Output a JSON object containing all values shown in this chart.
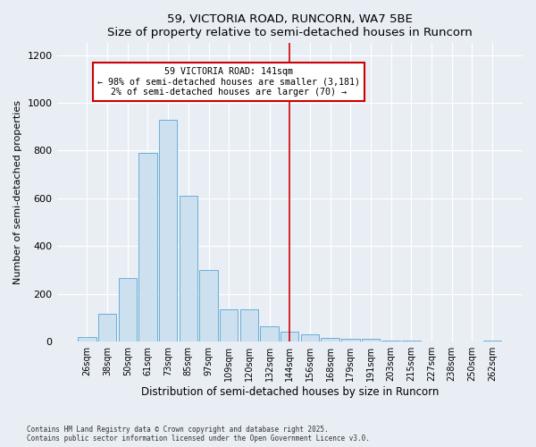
{
  "title1": "59, VICTORIA ROAD, RUNCORN, WA7 5BE",
  "title2": "Size of property relative to semi-detached houses in Runcorn",
  "xlabel": "Distribution of semi-detached houses by size in Runcorn",
  "ylabel": "Number of semi-detached properties",
  "categories": [
    "26sqm",
    "38sqm",
    "50sqm",
    "61sqm",
    "73sqm",
    "85sqm",
    "97sqm",
    "109sqm",
    "120sqm",
    "132sqm",
    "144sqm",
    "156sqm",
    "168sqm",
    "179sqm",
    "191sqm",
    "203sqm",
    "215sqm",
    "227sqm",
    "238sqm",
    "250sqm",
    "262sqm"
  ],
  "values": [
    20,
    115,
    265,
    790,
    930,
    610,
    300,
    135,
    135,
    65,
    40,
    30,
    15,
    10,
    10,
    5,
    5,
    0,
    0,
    0,
    5
  ],
  "bar_color": "#cce0f0",
  "bar_edge_color": "#6aaed6",
  "vline_x_index": 10,
  "annotation_text": "59 VICTORIA ROAD: 141sqm\n← 98% of semi-detached houses are smaller (3,181)\n2% of semi-detached houses are larger (70) →",
  "annotation_box_color": "#ffffff",
  "annotation_box_edge": "#cc0000",
  "vline_color": "#cc0000",
  "footer1": "Contains HM Land Registry data © Crown copyright and database right 2025.",
  "footer2": "Contains public sector information licensed under the Open Government Licence v3.0.",
  "background_color": "#e8eef4",
  "ylim": [
    0,
    1250
  ],
  "yticks": [
    0,
    200,
    400,
    600,
    800,
    1000,
    1200
  ]
}
